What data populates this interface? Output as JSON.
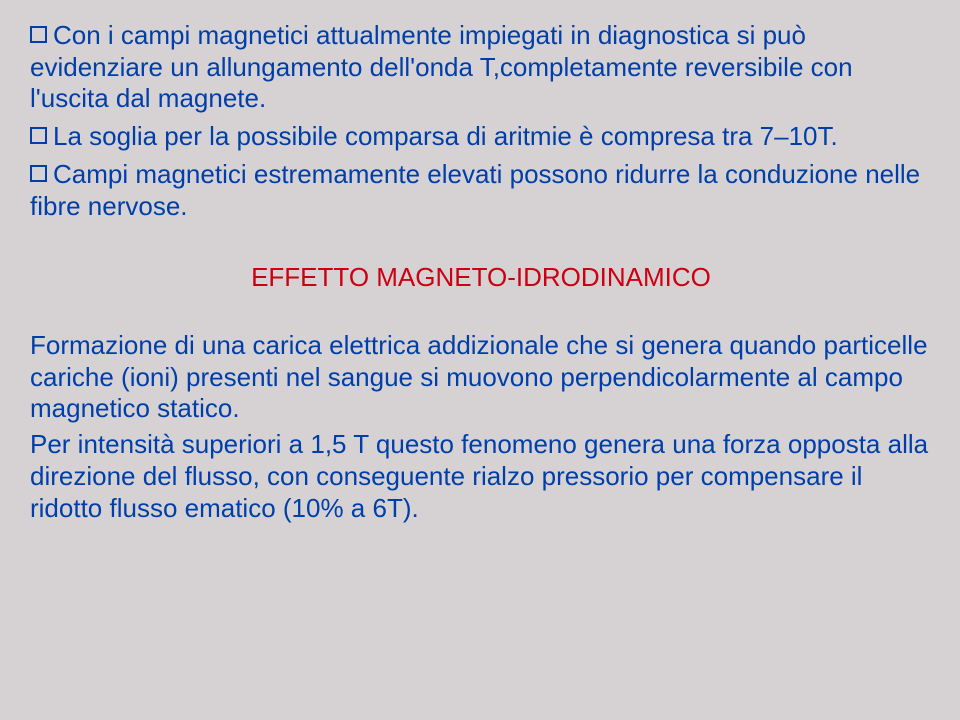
{
  "document": {
    "background_color": "#d6d2d3",
    "body_text_color": "#003fa9",
    "heading_color": "#cc0010",
    "bullet_border_color": "#003fa9",
    "font_family": "Arial, Helvetica, sans-serif",
    "font_size_pt": 20,
    "line_height": 1.22
  },
  "bullets": [
    {
      "text": "Con i campi magnetici attualmente impiegati  in diagnostica si può evidenziare un allungamento dell'onda T,completamente reversibile con l'uscita dal magnete."
    },
    {
      "text": "La soglia per la possibile comparsa di aritmie è compresa tra 7–10T."
    },
    {
      "text": "Campi magnetici estremamente elevati possono ridurre la conduzione nelle fibre nervose."
    }
  ],
  "heading": "EFFETTO MAGNETO-IDRODINAMICO",
  "paragraphs": [
    "Formazione di una carica elettrica addizionale che si genera quando particelle cariche (ioni) presenti nel sangue si muovono perpendicolarmente al campo magnetico statico.",
    "Per intensità superiori a 1,5 T questo fenomeno genera una forza opposta alla direzione del flusso, con conseguente rialzo pressorio per compensare il ridotto flusso ematico (10% a 6T)."
  ]
}
